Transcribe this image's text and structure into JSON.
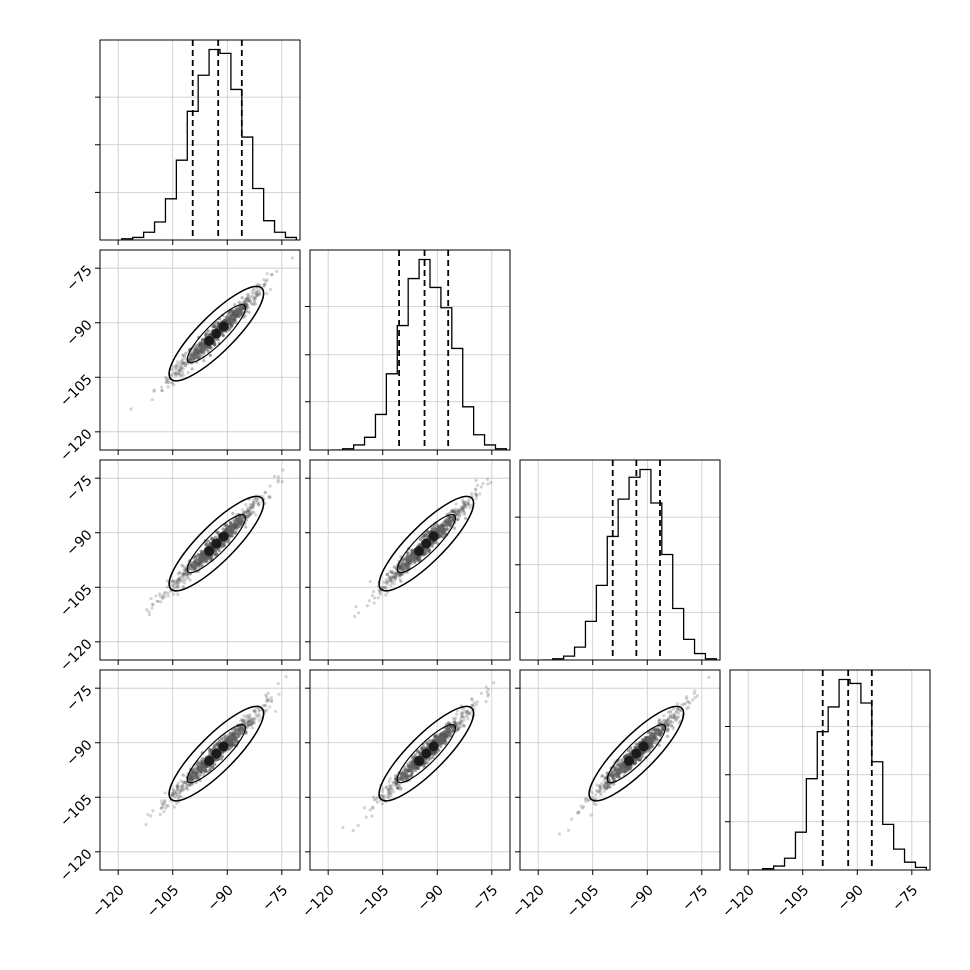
{
  "chart_data": {
    "type": "corner",
    "dimensions": 4,
    "axis_range": [
      -125,
      -70
    ],
    "ticks": [
      -120,
      -105,
      -90,
      -75
    ],
    "tick_labels": [
      "−120",
      "−105",
      "−90",
      "−75"
    ],
    "grid": true,
    "histogram_bins": [
      -119,
      -116,
      -113,
      -110,
      -107,
      -104,
      -101,
      -98,
      -95,
      -92,
      -89,
      -86,
      -83,
      -80,
      -77,
      -74,
      -71
    ],
    "histograms": [
      {
        "counts": [
          1,
          2,
          6,
          14,
          32,
          62,
          100,
          128,
          148,
          145,
          117,
          80,
          40,
          15,
          6,
          2,
          0
        ],
        "quantiles": [
          -99.5,
          -92.5,
          -86.0
        ]
      },
      {
        "counts": [
          0,
          1,
          4,
          10,
          28,
          60,
          98,
          135,
          150,
          128,
          112,
          80,
          34,
          12,
          4,
          1,
          0
        ],
        "quantiles": [
          -100.5,
          -93.5,
          -87.0
        ]
      },
      {
        "counts": [
          0,
          1,
          3,
          10,
          30,
          58,
          96,
          125,
          142,
          148,
          122,
          82,
          40,
          16,
          5,
          1,
          0
        ],
        "quantiles": [
          -99.5,
          -93.0,
          -86.5
        ]
      },
      {
        "counts": [
          0,
          1,
          3,
          9,
          29,
          70,
          106,
          125,
          146,
          143,
          128,
          83,
          35,
          16,
          6,
          2,
          0
        ],
        "quantiles": [
          -99.5,
          -92.5,
          -86.0
        ]
      }
    ],
    "scatter": {
      "x_range": [
        -117,
        -72
      ],
      "center": [
        -93,
        -93
      ],
      "credible_region": {
        "semi_major": 12.5,
        "semi_minor": 1.1,
        "angle_deg": 45
      }
    }
  }
}
